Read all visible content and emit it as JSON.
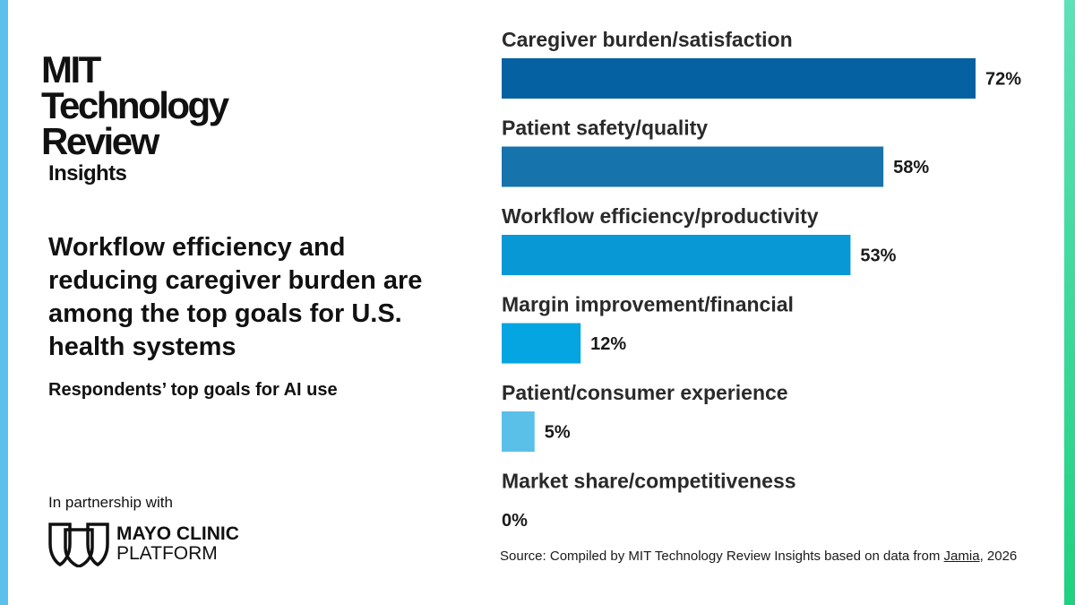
{
  "brand": {
    "lines": [
      "MIT",
      "Technology",
      "Review"
    ],
    "sub": "Insights"
  },
  "headline": "Workflow efficiency and reducing caregiver burden are among the top goals for U.S. health systems",
  "subhead": "Respondents’ top goals for AI use",
  "partner": {
    "label": "In partnership with",
    "name": "MAYO CLINIC",
    "sub": "PLATFORM",
    "logo_icon": "mayo-clinic-shield-icon"
  },
  "source": {
    "prefix": "Source: Compiled by MIT Technology Review Insights based on data from ",
    "link": "Jamia",
    "suffix": ", 2026"
  },
  "colors": {
    "left_edge": "#5bc0eb",
    "right_edge": "#1fd17f"
  },
  "chart_data": {
    "type": "bar",
    "orientation": "horizontal",
    "categories": [
      "Caregiver burden/satisfaction",
      "Patient safety/quality",
      "Workflow efficiency/productivity",
      "Margin improvement/financial",
      "Patient/consumer experience",
      "Market share/competitiveness"
    ],
    "values": [
      72,
      58,
      53,
      12,
      5,
      0
    ],
    "value_labels": [
      "72%",
      "58%",
      "53%",
      "12%",
      "5%",
      "0%"
    ],
    "bar_colors": [
      "#0561a1",
      "#1673ab",
      "#0898d6",
      "#04a5e1",
      "#5bc0e8",
      "#5bc0e8"
    ],
    "xlim": [
      0,
      72
    ],
    "grid": false,
    "legend": "none"
  }
}
